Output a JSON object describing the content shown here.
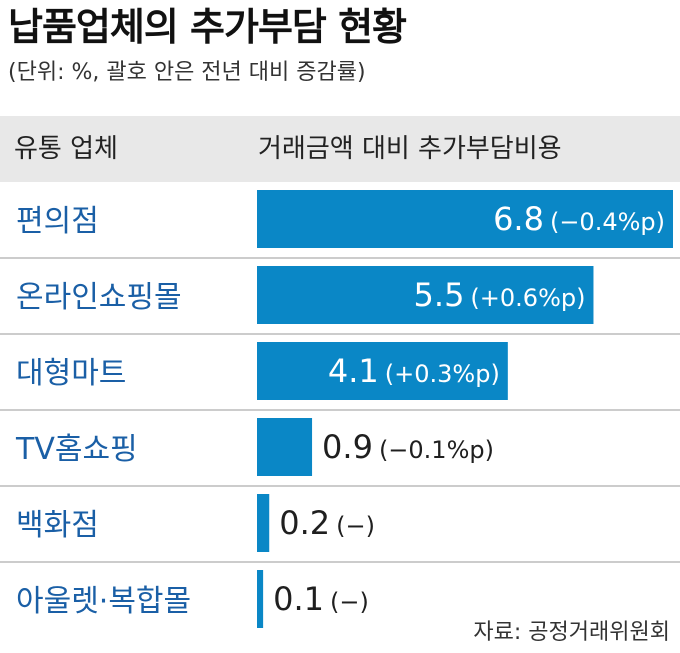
{
  "title": "납품업체의 추가부담 현황",
  "subtitle": "(단위: %, 괄호 안은 전년 대비 증감률)",
  "header": {
    "left": "유통 업체",
    "right": "거래금액 대비 추가부담비용"
  },
  "source": "자료: 공정거래위원회",
  "colors": {
    "bar": "#0a87c6",
    "category_text": "#1a5fa6",
    "header_bg": "#e8e8e8",
    "divider": "#9a9a9a"
  },
  "chart_data": {
    "type": "bar",
    "orientation": "horizontal",
    "categories": [
      "편의점",
      "온라인쇼핑몰",
      "대형마트",
      "TV홈쇼핑",
      "백화점",
      "아울렛·복합몰"
    ],
    "values": [
      6.8,
      5.5,
      4.1,
      0.9,
      0.2,
      0.1
    ],
    "changes": [
      "(−0.4%p)",
      "(+0.6%p)",
      "(+0.3%p)",
      "(−0.1%p)",
      "(−)",
      "(−)"
    ],
    "value_labels": [
      "6.8",
      "5.5",
      "4.1",
      "0.9",
      "0.2",
      "0.1"
    ],
    "xlim": [
      0,
      6.8
    ],
    "unit": "%",
    "grid": false,
    "legend": "none"
  }
}
